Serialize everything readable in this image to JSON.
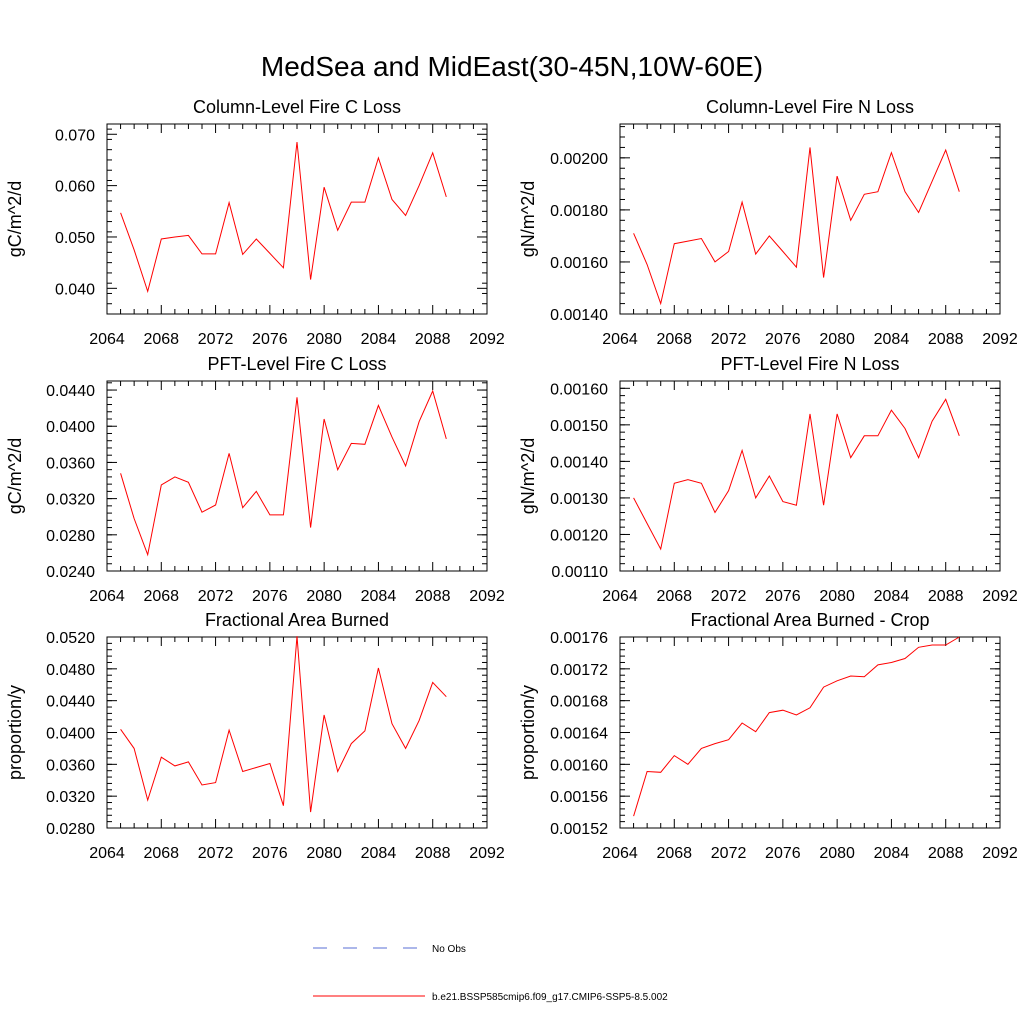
{
  "title": "MedSea and MidEast(30-45N,10W-60E)",
  "colors": {
    "series": "#ff0000",
    "obs": "#5a6fd6",
    "axis": "#000000"
  },
  "legend": {
    "items": [
      {
        "label": "No Obs",
        "style": "dashed",
        "color": "#5a6fd6"
      },
      {
        "label": "b.e21.BSSP585cmip6.f09_g17.CMIP6-SSP5-8.5.002",
        "style": "solid",
        "color": "#ff0000"
      }
    ]
  },
  "chart_data": [
    {
      "type": "line",
      "title": "Column-Level Fire C Loss",
      "ylabel": "gC/m^2/d",
      "xlim": [
        2064,
        2092
      ],
      "ylim": [
        0.035,
        0.072
      ],
      "xticks": [
        "2064",
        "2068",
        "2072",
        "2076",
        "2080",
        "2084",
        "2088",
        "2092"
      ],
      "yticks": [
        0.04,
        0.05,
        0.06,
        0.07
      ],
      "ytick_labels": [
        "0.040",
        "0.050",
        "0.060",
        "0.070"
      ],
      "ymajor": 0.01,
      "yminor": 0.002,
      "x": [
        2065,
        2066,
        2067,
        2068,
        2069,
        2070,
        2071,
        2072,
        2073,
        2074,
        2075,
        2076,
        2077,
        2078,
        2079,
        2080,
        2081,
        2082,
        2083,
        2084,
        2085,
        2086,
        2087,
        2088,
        2089
      ],
      "values": [
        0.0547,
        0.0475,
        0.0394,
        0.0496,
        0.05,
        0.0503,
        0.0467,
        0.0467,
        0.0567,
        0.0466,
        0.0496,
        0.0468,
        0.044,
        0.0685,
        0.0417,
        0.0597,
        0.0513,
        0.0568,
        0.0568,
        0.0654,
        0.0573,
        0.0542,
        0.06,
        0.0664,
        0.0578
      ]
    },
    {
      "type": "line",
      "title": "Column-Level Fire N Loss",
      "ylabel": "gN/m^2/d",
      "xlim": [
        2064,
        2092
      ],
      "ylim": [
        0.0014,
        0.00213
      ],
      "xticks": [
        "2064",
        "2068",
        "2072",
        "2076",
        "2080",
        "2084",
        "2088",
        "2092"
      ],
      "yticks": [
        0.0014,
        0.0016,
        0.0018,
        0.002
      ],
      "ytick_labels": [
        "0.00140",
        "0.00160",
        "0.00180",
        "0.00200"
      ],
      "ymajor": 0.0002,
      "yminor": 4e-05,
      "x": [
        2065,
        2066,
        2067,
        2068,
        2069,
        2070,
        2071,
        2072,
        2073,
        2074,
        2075,
        2076,
        2077,
        2078,
        2079,
        2080,
        2081,
        2082,
        2083,
        2084,
        2085,
        2086,
        2087,
        2088,
        2089
      ],
      "values": [
        0.00171,
        0.00159,
        0.00144,
        0.00167,
        0.00168,
        0.00169,
        0.0016,
        0.00164,
        0.00183,
        0.00163,
        0.0017,
        0.00164,
        0.00158,
        0.00204,
        0.00154,
        0.00193,
        0.00176,
        0.00186,
        0.00187,
        0.00202,
        0.00187,
        0.00179,
        0.00191,
        0.00203,
        0.00187
      ]
    },
    {
      "type": "line",
      "title": "PFT-Level Fire C Loss",
      "ylabel": "gC/m^2/d",
      "xlim": [
        2064,
        2092
      ],
      "ylim": [
        0.024,
        0.045
      ],
      "xticks": [
        "2064",
        "2068",
        "2072",
        "2076",
        "2080",
        "2084",
        "2088",
        "2092"
      ],
      "yticks": [
        0.024,
        0.028,
        0.032,
        0.036,
        0.04,
        0.044
      ],
      "ytick_labels": [
        "0.0240",
        "0.0280",
        "0.0320",
        "0.0360",
        "0.0400",
        "0.0440"
      ],
      "ymajor": 0.004,
      "yminor": 0.0008,
      "x": [
        2065,
        2066,
        2067,
        2068,
        2069,
        2070,
        2071,
        2072,
        2073,
        2074,
        2075,
        2076,
        2077,
        2078,
        2079,
        2080,
        2081,
        2082,
        2083,
        2084,
        2085,
        2086,
        2087,
        2088,
        2089
      ],
      "values": [
        0.0348,
        0.0298,
        0.0258,
        0.0335,
        0.0344,
        0.0338,
        0.0305,
        0.0313,
        0.037,
        0.031,
        0.0328,
        0.0302,
        0.0302,
        0.0432,
        0.0288,
        0.0408,
        0.0352,
        0.0381,
        0.038,
        0.0423,
        0.0388,
        0.0356,
        0.0405,
        0.0439,
        0.0386
      ]
    },
    {
      "type": "line",
      "title": "PFT-Level Fire N Loss",
      "ylabel": "gN/m^2/d",
      "xlim": [
        2064,
        2092
      ],
      "ylim": [
        0.0011,
        0.00162
      ],
      "xticks": [
        "2064",
        "2068",
        "2072",
        "2076",
        "2080",
        "2084",
        "2088",
        "2092"
      ],
      "yticks": [
        0.0011,
        0.0012,
        0.0013,
        0.0014,
        0.0015,
        0.0016
      ],
      "ytick_labels": [
        "0.00110",
        "0.00120",
        "0.00130",
        "0.00140",
        "0.00150",
        "0.00160"
      ],
      "ymajor": 0.0001,
      "yminor": 2e-05,
      "x": [
        2065,
        2066,
        2067,
        2068,
        2069,
        2070,
        2071,
        2072,
        2073,
        2074,
        2075,
        2076,
        2077,
        2078,
        2079,
        2080,
        2081,
        2082,
        2083,
        2084,
        2085,
        2086,
        2087,
        2088,
        2089
      ],
      "values": [
        0.0013,
        0.00123,
        0.00116,
        0.00134,
        0.00135,
        0.00134,
        0.00126,
        0.00132,
        0.00143,
        0.0013,
        0.00136,
        0.00129,
        0.00128,
        0.00153,
        0.00128,
        0.00153,
        0.00141,
        0.00147,
        0.00147,
        0.00154,
        0.00149,
        0.00141,
        0.00151,
        0.00157,
        0.00147
      ]
    },
    {
      "type": "line",
      "title": "Fractional Area Burned",
      "ylabel": "proportion/y",
      "xlim": [
        2064,
        2092
      ],
      "ylim": [
        0.028,
        0.052
      ],
      "xticks": [
        "2064",
        "2068",
        "2072",
        "2076",
        "2080",
        "2084",
        "2088",
        "2092"
      ],
      "yticks": [
        0.028,
        0.032,
        0.036,
        0.04,
        0.044,
        0.048,
        0.052
      ],
      "ytick_labels": [
        "0.0280",
        "0.0320",
        "0.0360",
        "0.0400",
        "0.0440",
        "0.0480",
        "0.0520"
      ],
      "ymajor": 0.004,
      "yminor": 0.0008,
      "x": [
        2065,
        2066,
        2067,
        2068,
        2069,
        2070,
        2071,
        2072,
        2073,
        2074,
        2075,
        2076,
        2077,
        2078,
        2079,
        2080,
        2081,
        2082,
        2083,
        2084,
        2085,
        2086,
        2087,
        2088,
        2089
      ],
      "values": [
        0.0404,
        0.038,
        0.0315,
        0.0369,
        0.0358,
        0.0363,
        0.0334,
        0.0337,
        0.0403,
        0.0351,
        0.0356,
        0.0361,
        0.0308,
        0.0521,
        0.03,
        0.0422,
        0.0351,
        0.0386,
        0.0402,
        0.0481,
        0.0411,
        0.038,
        0.0415,
        0.0463,
        0.0445
      ]
    },
    {
      "type": "line",
      "title": "Fractional Area Burned - Crop",
      "ylabel": "proportion/y",
      "xlim": [
        2064,
        2092
      ],
      "ylim": [
        0.00152,
        0.00176
      ],
      "xticks": [
        "2064",
        "2068",
        "2072",
        "2076",
        "2080",
        "2084",
        "2088",
        "2092"
      ],
      "yticks": [
        0.00152,
        0.00156,
        0.0016,
        0.00164,
        0.00168,
        0.00172,
        0.00176
      ],
      "ytick_labels": [
        "0.00152",
        "0.00156",
        "0.00160",
        "0.00164",
        "0.00168",
        "0.00172",
        "0.00176"
      ],
      "ymajor": 4e-05,
      "yminor": 8e-06,
      "x": [
        2065,
        2066,
        2067,
        2068,
        2069,
        2070,
        2071,
        2072,
        2073,
        2074,
        2075,
        2076,
        2077,
        2078,
        2079,
        2080,
        2081,
        2082,
        2083,
        2084,
        2085,
        2086,
        2087,
        2088,
        2089
      ],
      "values": [
        0.001535,
        0.001591,
        0.00159,
        0.001611,
        0.0016,
        0.00162,
        0.001626,
        0.001631,
        0.001652,
        0.001641,
        0.001665,
        0.001668,
        0.001662,
        0.001671,
        0.001697,
        0.001705,
        0.001711,
        0.00171,
        0.001725,
        0.001728,
        0.001733,
        0.001747,
        0.00175,
        0.00175,
        0.00176
      ]
    }
  ]
}
